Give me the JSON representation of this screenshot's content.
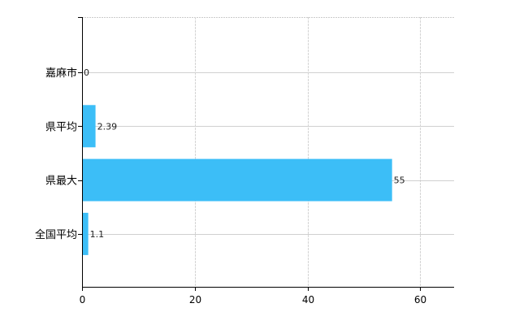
{
  "chart_data": {
    "type": "bar",
    "orientation": "horizontal",
    "categories": [
      "嘉麻市",
      "県平均",
      "県最大",
      "全国平均"
    ],
    "values": [
      0,
      2.39,
      55,
      1.1
    ],
    "data_labels": [
      "0",
      "2.39",
      "55",
      "1.1"
    ],
    "xlim": [
      0,
      66
    ],
    "xticks": [
      "0",
      "20",
      "40",
      "60"
    ],
    "grid": true,
    "legend": "none",
    "bar_color": "#3cbef7"
  }
}
